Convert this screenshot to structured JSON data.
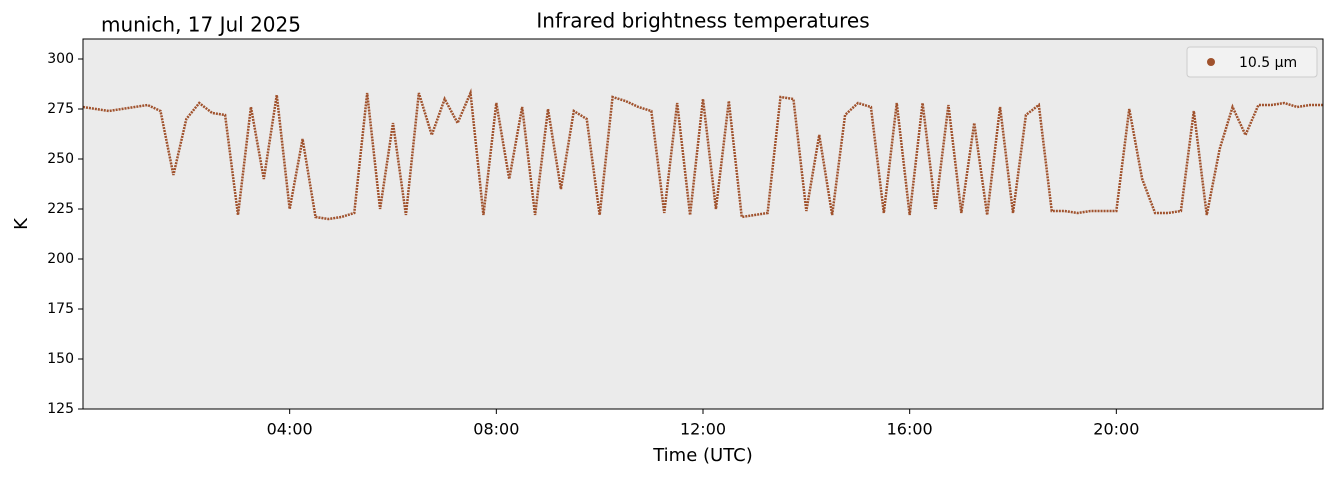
{
  "chart_data": {
    "type": "line",
    "title": "Infrared brightness temperatures",
    "subtitle": "munich, 17 Jul 2025",
    "xlabel": "Time (UTC)",
    "ylabel": "K",
    "x": [
      "00:00",
      "00:15",
      "00:30",
      "00:45",
      "01:00",
      "01:15",
      "01:30",
      "01:45",
      "02:00",
      "02:15",
      "02:30",
      "02:45",
      "03:00",
      "03:15",
      "03:30",
      "03:45",
      "04:00",
      "04:15",
      "04:30",
      "04:45",
      "05:00",
      "05:15",
      "05:30",
      "05:45",
      "06:00",
      "06:15",
      "06:30",
      "06:45",
      "07:00",
      "07:15",
      "07:30",
      "07:45",
      "08:00",
      "08:15",
      "08:30",
      "08:45",
      "09:00",
      "09:15",
      "09:30",
      "09:45",
      "10:00",
      "10:15",
      "10:30",
      "10:45",
      "11:00",
      "11:15",
      "11:30",
      "11:45",
      "12:00",
      "12:15",
      "12:30",
      "12:45",
      "13:00",
      "13:15",
      "13:30",
      "13:45",
      "14:00",
      "14:15",
      "14:30",
      "14:45",
      "15:00",
      "15:15",
      "15:30",
      "15:45",
      "16:00",
      "16:15",
      "16:30",
      "16:45",
      "17:00",
      "17:15",
      "17:30",
      "17:45",
      "18:00",
      "18:15",
      "18:30",
      "18:45",
      "19:00",
      "19:15",
      "19:30",
      "19:45",
      "20:00",
      "20:15",
      "20:30",
      "20:45",
      "21:00",
      "21:15",
      "21:30",
      "21:45",
      "22:00",
      "22:15",
      "22:30",
      "22:45",
      "23:00",
      "23:15",
      "23:30",
      "23:45",
      "24:00"
    ],
    "series": [
      {
        "name": "10.5 µm",
        "color": "#a0522d",
        "values": [
          276,
          275,
          274,
          275,
          276,
          277,
          274,
          242,
          270,
          278,
          273,
          272,
          222,
          276,
          240,
          282,
          225,
          260,
          221,
          220,
          221,
          223,
          283,
          225,
          268,
          222,
          283,
          262,
          280,
          268,
          283,
          222,
          278,
          240,
          276,
          222,
          275,
          235,
          274,
          270,
          222,
          281,
          279,
          276,
          274,
          223,
          278,
          222,
          280,
          225,
          279,
          221,
          222,
          223,
          281,
          280,
          224,
          262,
          222,
          272,
          278,
          276,
          223,
          278,
          222,
          278,
          225,
          277,
          223,
          268,
          222,
          276,
          223,
          272,
          277,
          224,
          224,
          223,
          224,
          224,
          224,
          275,
          240,
          223,
          223,
          224,
          274,
          222,
          255,
          276,
          262,
          277,
          277,
          278,
          276,
          277,
          277
        ]
      }
    ],
    "xlim": [
      "00:00",
      "24:00"
    ],
    "xticks": [
      "04:00",
      "08:00",
      "12:00",
      "16:00",
      "20:00"
    ],
    "ylim": [
      125,
      310
    ],
    "yticks": [
      125,
      150,
      175,
      200,
      225,
      250,
      275,
      300
    ],
    "legend": "upper right",
    "background": "#ebebeb"
  }
}
